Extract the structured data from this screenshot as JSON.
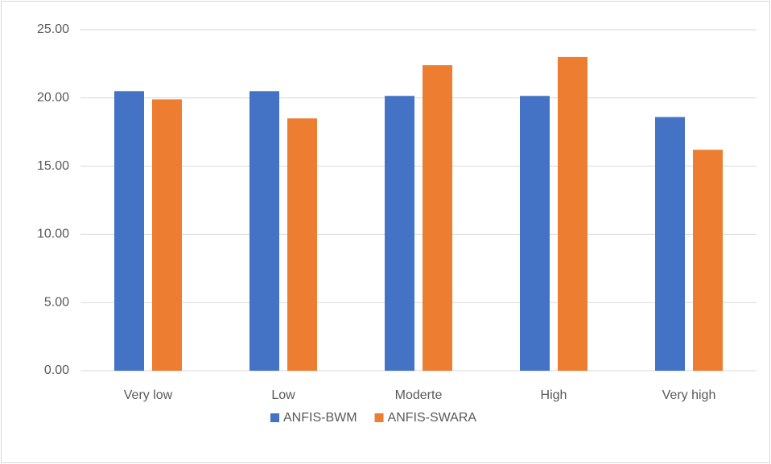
{
  "chart_data": {
    "type": "bar",
    "categories": [
      "Very low",
      "Low",
      "Moderte",
      "High",
      "Very high"
    ],
    "series": [
      {
        "name": "ANFIS-BWM",
        "color": "#4472c4",
        "values": [
          20.5,
          20.5,
          20.15,
          20.15,
          18.6
        ]
      },
      {
        "name": "ANFIS-SWARA",
        "color": "#ed7d31",
        "values": [
          19.9,
          18.5,
          22.4,
          23.0,
          16.2
        ]
      }
    ],
    "ylim": [
      0,
      25
    ],
    "yticks": [
      {
        "value": 0,
        "label": "0.00"
      },
      {
        "value": 5,
        "label": "5.00"
      },
      {
        "value": 10,
        "label": "10.00"
      },
      {
        "value": 15,
        "label": "15.00"
      },
      {
        "value": 20,
        "label": "20.00"
      },
      {
        "value": 25,
        "label": "25.00"
      }
    ],
    "grid": true,
    "legend": "bottom"
  }
}
